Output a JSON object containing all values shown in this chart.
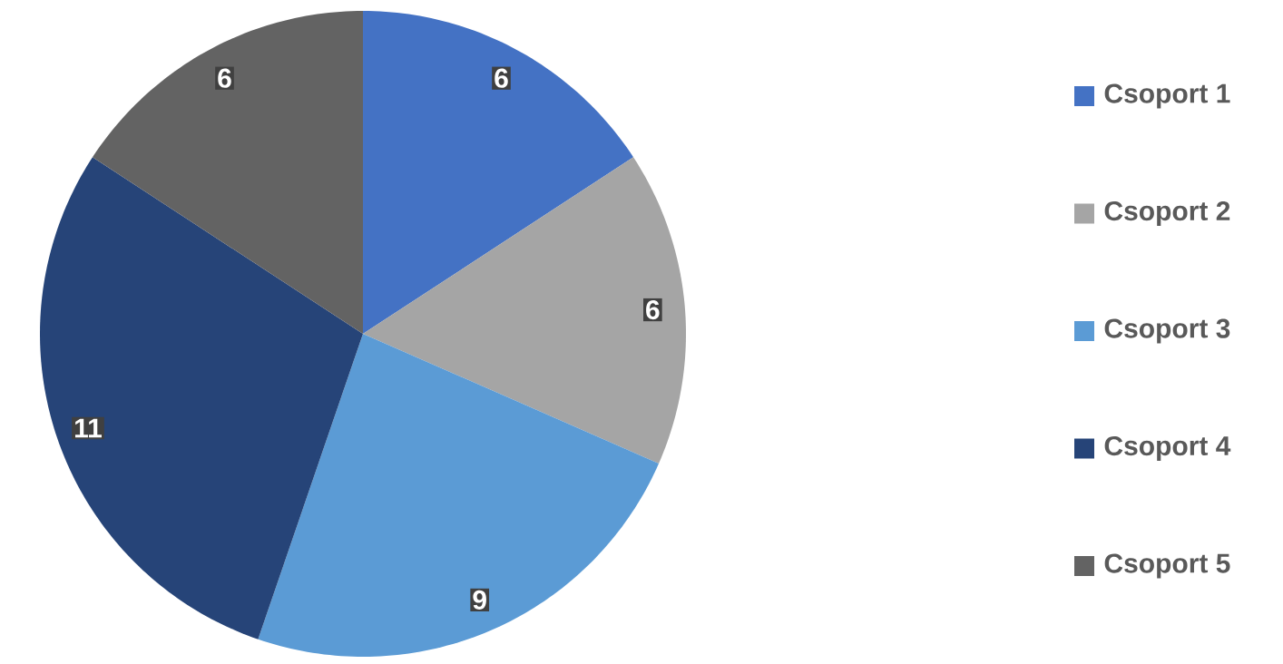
{
  "chart_data": {
    "type": "pie",
    "categories": [
      "Csoport 1",
      "Csoport 2",
      "Csoport 3",
      "Csoport 4",
      "Csoport 5"
    ],
    "values": [
      6,
      6,
      9,
      11,
      6
    ],
    "colors": [
      "#4472c4",
      "#a5a5a5",
      "#5b9bd5",
      "#264478",
      "#636363"
    ],
    "data_labels": true,
    "legend": "right"
  }
}
